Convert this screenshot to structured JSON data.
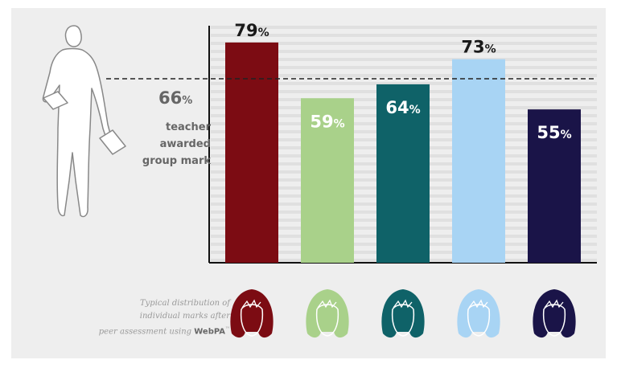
{
  "chart_data": {
    "type": "bar",
    "categories": [
      "79%",
      "59%",
      "64%",
      "73%",
      "55%"
    ],
    "values": [
      79,
      59,
      64,
      73,
      55
    ],
    "value_labels": [
      "79",
      "59",
      "64",
      "73",
      "55"
    ],
    "percent_sign": "%",
    "bar_colors": [
      "#7c0c13",
      "#a9d18a",
      "#0f6268",
      "#a8d4f4",
      "#1a1448"
    ],
    "label_colors": [
      "#1a1a1a",
      "#ffffff",
      "#ffffff",
      "#1a1a1a",
      "#ffffff"
    ],
    "label_positions": [
      "above",
      "inside",
      "inside",
      "above",
      "inside"
    ],
    "reference_line": {
      "value": 66,
      "value_text": "66",
      "percent_sign": "%",
      "lines": [
        "teacher",
        "awarded",
        "group mark"
      ],
      "style": "dashed"
    },
    "ylim": [
      0,
      100
    ],
    "grid": true,
    "title": "",
    "xlabel": "",
    "ylabel": ""
  },
  "caption": {
    "line1": "Typical distribution of",
    "line2": "individual marks after",
    "line3": "peer assessment using",
    "brand": "WebPA",
    "trademark": "™"
  },
  "illustrations": {
    "teacher": "teacher-figure-icon",
    "faces": [
      "student-face-1-icon",
      "student-face-2-icon",
      "student-face-3-icon",
      "student-face-4-icon",
      "student-face-5-icon"
    ]
  }
}
